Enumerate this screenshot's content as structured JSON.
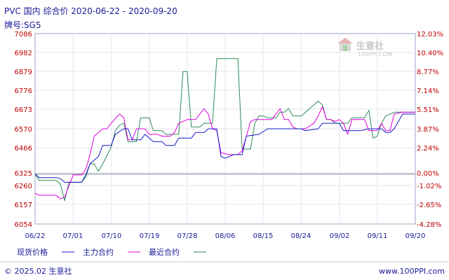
{
  "header": {
    "title": "PVC 国内 综合价 2020-06-22 - 2020-09-20",
    "subtitle": "牌号:SG5"
  },
  "watermark": {
    "name": "生意社",
    "url": "100PPI.COM"
  },
  "footer": {
    "copyright": "© 2025.02 生意社",
    "website": "www.100PPI.com"
  },
  "chart_data": {
    "type": "line",
    "title": "PVC 国内 综合价 2020-06-22 - 2020-09-20",
    "subtitle": "牌号:SG5",
    "x_ticks": [
      "06/22",
      "07/01",
      "07/10",
      "07/19",
      "07/28",
      "08/06",
      "08/15",
      "08/24",
      "09/02",
      "09/11",
      "09/20"
    ],
    "y_left_ticks": [
      "7086",
      "6982",
      "6879",
      "6776",
      "6673",
      "6570",
      "6466",
      "6325",
      "6260",
      "6157",
      "6054"
    ],
    "y_right_ticks": [
      "12.03%",
      "10.40%",
      "8.77%",
      "7.14%",
      "5.51%",
      "3.87%",
      "2.24%",
      "0.00%",
      "-1.02%",
      "-2.65%",
      "-4.28%"
    ],
    "ylim": [
      6054,
      7086
    ],
    "baseline": 6325,
    "x_days": 90,
    "grid": true,
    "legend_position": "bottom",
    "series": [
      {
        "name": "现货价格",
        "color": "#1818c8",
        "points": [
          [
            0,
            6325
          ],
          [
            1,
            6305
          ],
          [
            5,
            6305
          ],
          [
            6,
            6300
          ],
          [
            7,
            6280
          ],
          [
            11,
            6280
          ],
          [
            12,
            6320
          ],
          [
            13,
            6380
          ],
          [
            15,
            6420
          ],
          [
            16,
            6480
          ],
          [
            18,
            6480
          ],
          [
            19,
            6540
          ],
          [
            21,
            6570
          ],
          [
            22,
            6570
          ],
          [
            23,
            6510
          ],
          [
            25,
            6510
          ],
          [
            26,
            6540
          ],
          [
            28,
            6500
          ],
          [
            30,
            6500
          ],
          [
            31,
            6480
          ],
          [
            33,
            6480
          ],
          [
            34,
            6520
          ],
          [
            37,
            6520
          ],
          [
            38,
            6550
          ],
          [
            40,
            6550
          ],
          [
            41,
            6570
          ],
          [
            43,
            6570
          ],
          [
            44,
            6420
          ],
          [
            45,
            6410
          ],
          [
            47,
            6430
          ],
          [
            49,
            6430
          ],
          [
            50,
            6530
          ],
          [
            53,
            6540
          ],
          [
            55,
            6570
          ],
          [
            63,
            6570
          ],
          [
            64,
            6560
          ],
          [
            67,
            6570
          ],
          [
            68,
            6600
          ],
          [
            72,
            6600
          ],
          [
            73,
            6560
          ],
          [
            77,
            6560
          ],
          [
            79,
            6570
          ],
          [
            82,
            6570
          ],
          [
            83,
            6550
          ],
          [
            84,
            6550
          ],
          [
            85,
            6570
          ],
          [
            87,
            6650
          ],
          [
            90,
            6650
          ]
        ]
      },
      {
        "name": "主力合约",
        "color": "#e000e0",
        "points": [
          [
            0,
            6220
          ],
          [
            1,
            6210
          ],
          [
            5,
            6210
          ],
          [
            6,
            6190
          ],
          [
            7,
            6200
          ],
          [
            8,
            6260
          ],
          [
            9,
            6320
          ],
          [
            11,
            6320
          ],
          [
            12,
            6350
          ],
          [
            13,
            6430
          ],
          [
            14,
            6530
          ],
          [
            16,
            6570
          ],
          [
            17,
            6570
          ],
          [
            18,
            6600
          ],
          [
            20,
            6650
          ],
          [
            21,
            6630
          ],
          [
            22,
            6510
          ],
          [
            23,
            6510
          ],
          [
            24,
            6570
          ],
          [
            26,
            6570
          ],
          [
            27,
            6540
          ],
          [
            29,
            6540
          ],
          [
            30,
            6530
          ],
          [
            32,
            6530
          ],
          [
            33,
            6550
          ],
          [
            34,
            6600
          ],
          [
            36,
            6620
          ],
          [
            38,
            6620
          ],
          [
            40,
            6680
          ],
          [
            41,
            6650
          ],
          [
            42,
            6570
          ],
          [
            43,
            6560
          ],
          [
            44,
            6440
          ],
          [
            46,
            6430
          ],
          [
            48,
            6430
          ],
          [
            49,
            6450
          ],
          [
            51,
            6610
          ],
          [
            52,
            6620
          ],
          [
            56,
            6620
          ],
          [
            57,
            6650
          ],
          [
            58,
            6680
          ],
          [
            59,
            6620
          ],
          [
            60,
            6620
          ],
          [
            61,
            6580
          ],
          [
            62,
            6570
          ],
          [
            64,
            6570
          ],
          [
            66,
            6600
          ],
          [
            67,
            6640
          ],
          [
            68,
            6690
          ],
          [
            69,
            6620
          ],
          [
            70,
            6620
          ],
          [
            71,
            6610
          ],
          [
            72,
            6620
          ],
          [
            73,
            6600
          ],
          [
            74,
            6540
          ],
          [
            75,
            6620
          ],
          [
            78,
            6620
          ],
          [
            79,
            6560
          ],
          [
            81,
            6560
          ],
          [
            82,
            6600
          ],
          [
            83,
            6560
          ],
          [
            84,
            6560
          ],
          [
            85,
            6650
          ],
          [
            87,
            6660
          ],
          [
            90,
            6660
          ]
        ]
      },
      {
        "name": "最近合约",
        "color": "#2e8b57",
        "points": [
          [
            0,
            6325
          ],
          [
            1,
            6290
          ],
          [
            5,
            6290
          ],
          [
            6,
            6270
          ],
          [
            7,
            6180
          ],
          [
            8,
            6280
          ],
          [
            11,
            6280
          ],
          [
            12,
            6310
          ],
          [
            13,
            6380
          ],
          [
            14,
            6380
          ],
          [
            15,
            6340
          ],
          [
            16,
            6380
          ],
          [
            18,
            6470
          ],
          [
            19,
            6560
          ],
          [
            20,
            6590
          ],
          [
            21,
            6600
          ],
          [
            22,
            6500
          ],
          [
            24,
            6500
          ],
          [
            25,
            6630
          ],
          [
            27,
            6630
          ],
          [
            28,
            6560
          ],
          [
            30,
            6560
          ],
          [
            31,
            6540
          ],
          [
            34,
            6540
          ],
          [
            35,
            6880
          ],
          [
            36,
            6880
          ],
          [
            37,
            6580
          ],
          [
            39,
            6580
          ],
          [
            40,
            6600
          ],
          [
            42,
            6600
          ],
          [
            43,
            6950
          ],
          [
            48,
            6950
          ],
          [
            49,
            6460
          ],
          [
            51,
            6460
          ],
          [
            52,
            6600
          ],
          [
            53,
            6640
          ],
          [
            54,
            6640
          ],
          [
            55,
            6630
          ],
          [
            57,
            6630
          ],
          [
            58,
            6660
          ],
          [
            59,
            6660
          ],
          [
            60,
            6680
          ],
          [
            61,
            6640
          ],
          [
            63,
            6640
          ],
          [
            65,
            6680
          ],
          [
            66,
            6700
          ],
          [
            67,
            6720
          ],
          [
            68,
            6700
          ],
          [
            69,
            6620
          ],
          [
            70,
            6620
          ],
          [
            71,
            6600
          ],
          [
            74,
            6600
          ],
          [
            75,
            6630
          ],
          [
            78,
            6630
          ],
          [
            79,
            6670
          ],
          [
            80,
            6520
          ],
          [
            81,
            6530
          ],
          [
            82,
            6600
          ],
          [
            83,
            6640
          ],
          [
            85,
            6660
          ],
          [
            90,
            6660
          ]
        ]
      }
    ]
  }
}
